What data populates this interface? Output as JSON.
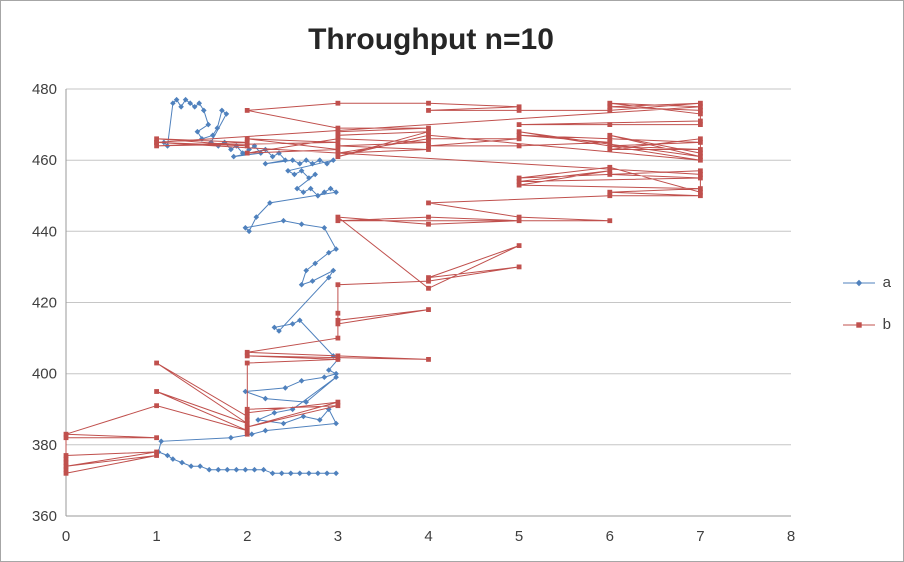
{
  "chart_data": {
    "type": "line",
    "title": "Throughput n=10",
    "xlabel": "",
    "ylabel": "",
    "xlim": [
      0,
      8
    ],
    "ylim": [
      360,
      480
    ],
    "x_ticks": [
      0,
      1,
      2,
      3,
      4,
      5,
      6,
      7,
      8
    ],
    "y_ticks": [
      360,
      380,
      400,
      420,
      440,
      460,
      480
    ],
    "grid": "horizontal",
    "legend_position": "right",
    "series": [
      {
        "name": "a",
        "color": "#4F81BD",
        "marker": "diamond",
        "points": [
          [
            1.08,
            465
          ],
          [
            1.12,
            464
          ],
          [
            1.18,
            476
          ],
          [
            1.22,
            477
          ],
          [
            1.27,
            475
          ],
          [
            1.32,
            477
          ],
          [
            1.37,
            476
          ],
          [
            1.42,
            475
          ],
          [
            1.47,
            476
          ],
          [
            1.52,
            474
          ],
          [
            1.57,
            470
          ],
          [
            1.45,
            468
          ],
          [
            1.5,
            466
          ],
          [
            1.62,
            467
          ],
          [
            1.67,
            469
          ],
          [
            1.72,
            474
          ],
          [
            1.77,
            473
          ],
          [
            1.6,
            465
          ],
          [
            1.68,
            464
          ],
          [
            1.75,
            465
          ],
          [
            1.82,
            463
          ],
          [
            1.88,
            464
          ],
          [
            1.95,
            462
          ],
          [
            2.02,
            463
          ],
          [
            2.08,
            464
          ],
          [
            2.15,
            462
          ],
          [
            1.85,
            461
          ],
          [
            2.2,
            463
          ],
          [
            2.28,
            461
          ],
          [
            2.35,
            462
          ],
          [
            2.42,
            460
          ],
          [
            2.2,
            459
          ],
          [
            2.5,
            460
          ],
          [
            2.58,
            459
          ],
          [
            2.65,
            460
          ],
          [
            2.72,
            459
          ],
          [
            2.8,
            460
          ],
          [
            2.88,
            459
          ],
          [
            2.95,
            460
          ],
          [
            2.45,
            457
          ],
          [
            2.52,
            456
          ],
          [
            2.6,
            457
          ],
          [
            2.68,
            455
          ],
          [
            2.75,
            456
          ],
          [
            2.55,
            452
          ],
          [
            2.62,
            451
          ],
          [
            2.7,
            452
          ],
          [
            2.78,
            450
          ],
          [
            2.85,
            451
          ],
          [
            2.92,
            452
          ],
          [
            2.98,
            451
          ],
          [
            2.25,
            448
          ],
          [
            2.1,
            444
          ],
          [
            2.02,
            440
          ],
          [
            1.98,
            441
          ],
          [
            2.4,
            443
          ],
          [
            2.6,
            442
          ],
          [
            2.85,
            441
          ],
          [
            2.98,
            435
          ],
          [
            2.9,
            434
          ],
          [
            2.75,
            431
          ],
          [
            2.65,
            429
          ],
          [
            2.6,
            425
          ],
          [
            2.72,
            426
          ],
          [
            2.95,
            429
          ],
          [
            2.9,
            427
          ],
          [
            2.35,
            412
          ],
          [
            2.3,
            413
          ],
          [
            2.5,
            414
          ],
          [
            2.58,
            415
          ],
          [
            2.95,
            405
          ],
          [
            3,
            404
          ],
          [
            2.9,
            401
          ],
          [
            2.98,
            400
          ],
          [
            2.85,
            399
          ],
          [
            2.6,
            398
          ],
          [
            2.42,
            396
          ],
          [
            1.98,
            395
          ],
          [
            2.2,
            393
          ],
          [
            2.65,
            392
          ],
          [
            2.98,
            399
          ],
          [
            2.5,
            390
          ],
          [
            2.3,
            389
          ],
          [
            2.12,
            387
          ],
          [
            2.4,
            386
          ],
          [
            2.62,
            388
          ],
          [
            2.8,
            387
          ],
          [
            2.9,
            390
          ],
          [
            2.98,
            386
          ],
          [
            2.2,
            384
          ],
          [
            2.05,
            383
          ],
          [
            1.82,
            382
          ],
          [
            1.05,
            381
          ],
          [
            1.02,
            378
          ],
          [
            1.12,
            377
          ],
          [
            1.18,
            376
          ],
          [
            1.28,
            375
          ],
          [
            1.38,
            374
          ],
          [
            1.48,
            374
          ],
          [
            1.58,
            373
          ],
          [
            1.68,
            373
          ],
          [
            1.78,
            373
          ],
          [
            1.88,
            373
          ],
          [
            1.98,
            373
          ],
          [
            2.08,
            373
          ],
          [
            2.18,
            373
          ],
          [
            2.28,
            372
          ],
          [
            2.38,
            372
          ],
          [
            2.48,
            372
          ],
          [
            2.58,
            372
          ],
          [
            2.68,
            372
          ],
          [
            2.78,
            372
          ],
          [
            2.88,
            372
          ],
          [
            2.98,
            372
          ]
        ]
      },
      {
        "name": "b",
        "color": "#C0504D",
        "marker": "square",
        "points": [
          [
            0,
            375
          ],
          [
            0,
            373
          ],
          [
            0,
            377
          ],
          [
            1,
            378
          ],
          [
            0,
            374
          ],
          [
            1,
            377
          ],
          [
            0,
            372
          ],
          [
            0,
            376
          ],
          [
            0,
            382
          ],
          [
            1,
            382
          ],
          [
            0,
            383
          ],
          [
            1,
            391
          ],
          [
            2,
            384
          ],
          [
            1,
            395
          ],
          [
            2,
            386
          ],
          [
            1,
            403
          ],
          [
            2,
            388
          ],
          [
            2,
            390
          ],
          [
            3,
            391
          ],
          [
            2,
            385
          ],
          [
            3,
            392
          ],
          [
            2,
            389
          ],
          [
            2,
            387
          ],
          [
            2,
            383
          ],
          [
            2,
            403
          ],
          [
            3,
            404
          ],
          [
            2,
            405
          ],
          [
            4,
            404
          ],
          [
            3,
            405
          ],
          [
            2,
            406
          ],
          [
            3,
            410
          ],
          [
            3,
            414
          ],
          [
            4,
            418
          ],
          [
            3,
            415
          ],
          [
            3,
            417
          ],
          [
            3,
            425
          ],
          [
            4,
            426
          ],
          [
            5,
            430
          ],
          [
            4,
            427
          ],
          [
            5,
            436
          ],
          [
            4,
            424
          ],
          [
            3,
            444
          ],
          [
            4,
            442
          ],
          [
            5,
            443
          ],
          [
            4,
            444
          ],
          [
            3,
            443
          ],
          [
            6,
            443
          ],
          [
            5,
            444
          ],
          [
            4,
            448
          ],
          [
            6,
            450
          ],
          [
            7,
            450
          ],
          [
            6,
            451
          ],
          [
            7,
            452
          ],
          [
            5,
            453
          ],
          [
            6,
            457
          ],
          [
            5,
            454
          ],
          [
            7,
            455
          ],
          [
            6,
            456
          ],
          [
            7,
            457
          ],
          [
            5,
            455
          ],
          [
            6,
            458
          ],
          [
            7,
            451
          ],
          [
            7,
            456
          ],
          [
            1,
            465
          ],
          [
            2,
            464
          ],
          [
            1,
            466
          ],
          [
            2,
            465
          ],
          [
            1,
            464
          ],
          [
            3,
            465
          ],
          [
            2,
            466
          ],
          [
            3,
            463
          ],
          [
            2,
            462
          ],
          [
            3,
            466
          ],
          [
            4,
            465
          ],
          [
            3,
            464
          ],
          [
            4,
            463
          ],
          [
            3,
            462
          ],
          [
            4,
            466
          ],
          [
            5,
            466
          ],
          [
            4,
            464
          ],
          [
            5,
            464
          ],
          [
            6,
            465
          ],
          [
            5,
            467
          ],
          [
            6,
            466
          ],
          [
            7,
            465
          ],
          [
            6,
            464
          ],
          [
            7,
            463
          ],
          [
            6,
            463
          ],
          [
            7,
            466
          ],
          [
            7,
            462
          ],
          [
            6,
            467
          ],
          [
            7,
            461
          ],
          [
            5,
            468
          ],
          [
            7,
            460
          ],
          [
            4,
            467
          ],
          [
            3,
            461
          ],
          [
            4,
            468
          ],
          [
            3,
            467
          ],
          [
            3,
            468
          ],
          [
            4,
            469
          ],
          [
            3,
            469
          ],
          [
            2,
            474
          ],
          [
            3,
            476
          ],
          [
            4,
            476
          ],
          [
            5,
            475
          ],
          [
            4,
            474
          ],
          [
            5,
            474
          ],
          [
            6,
            474
          ],
          [
            7,
            476
          ],
          [
            6,
            475
          ],
          [
            7,
            474
          ],
          [
            7,
            470
          ],
          [
            6,
            470
          ],
          [
            5,
            470
          ],
          [
            7,
            471
          ],
          [
            7,
            473
          ],
          [
            6,
            476
          ],
          [
            7,
            475
          ],
          [
            1,
            465
          ]
        ]
      }
    ]
  }
}
